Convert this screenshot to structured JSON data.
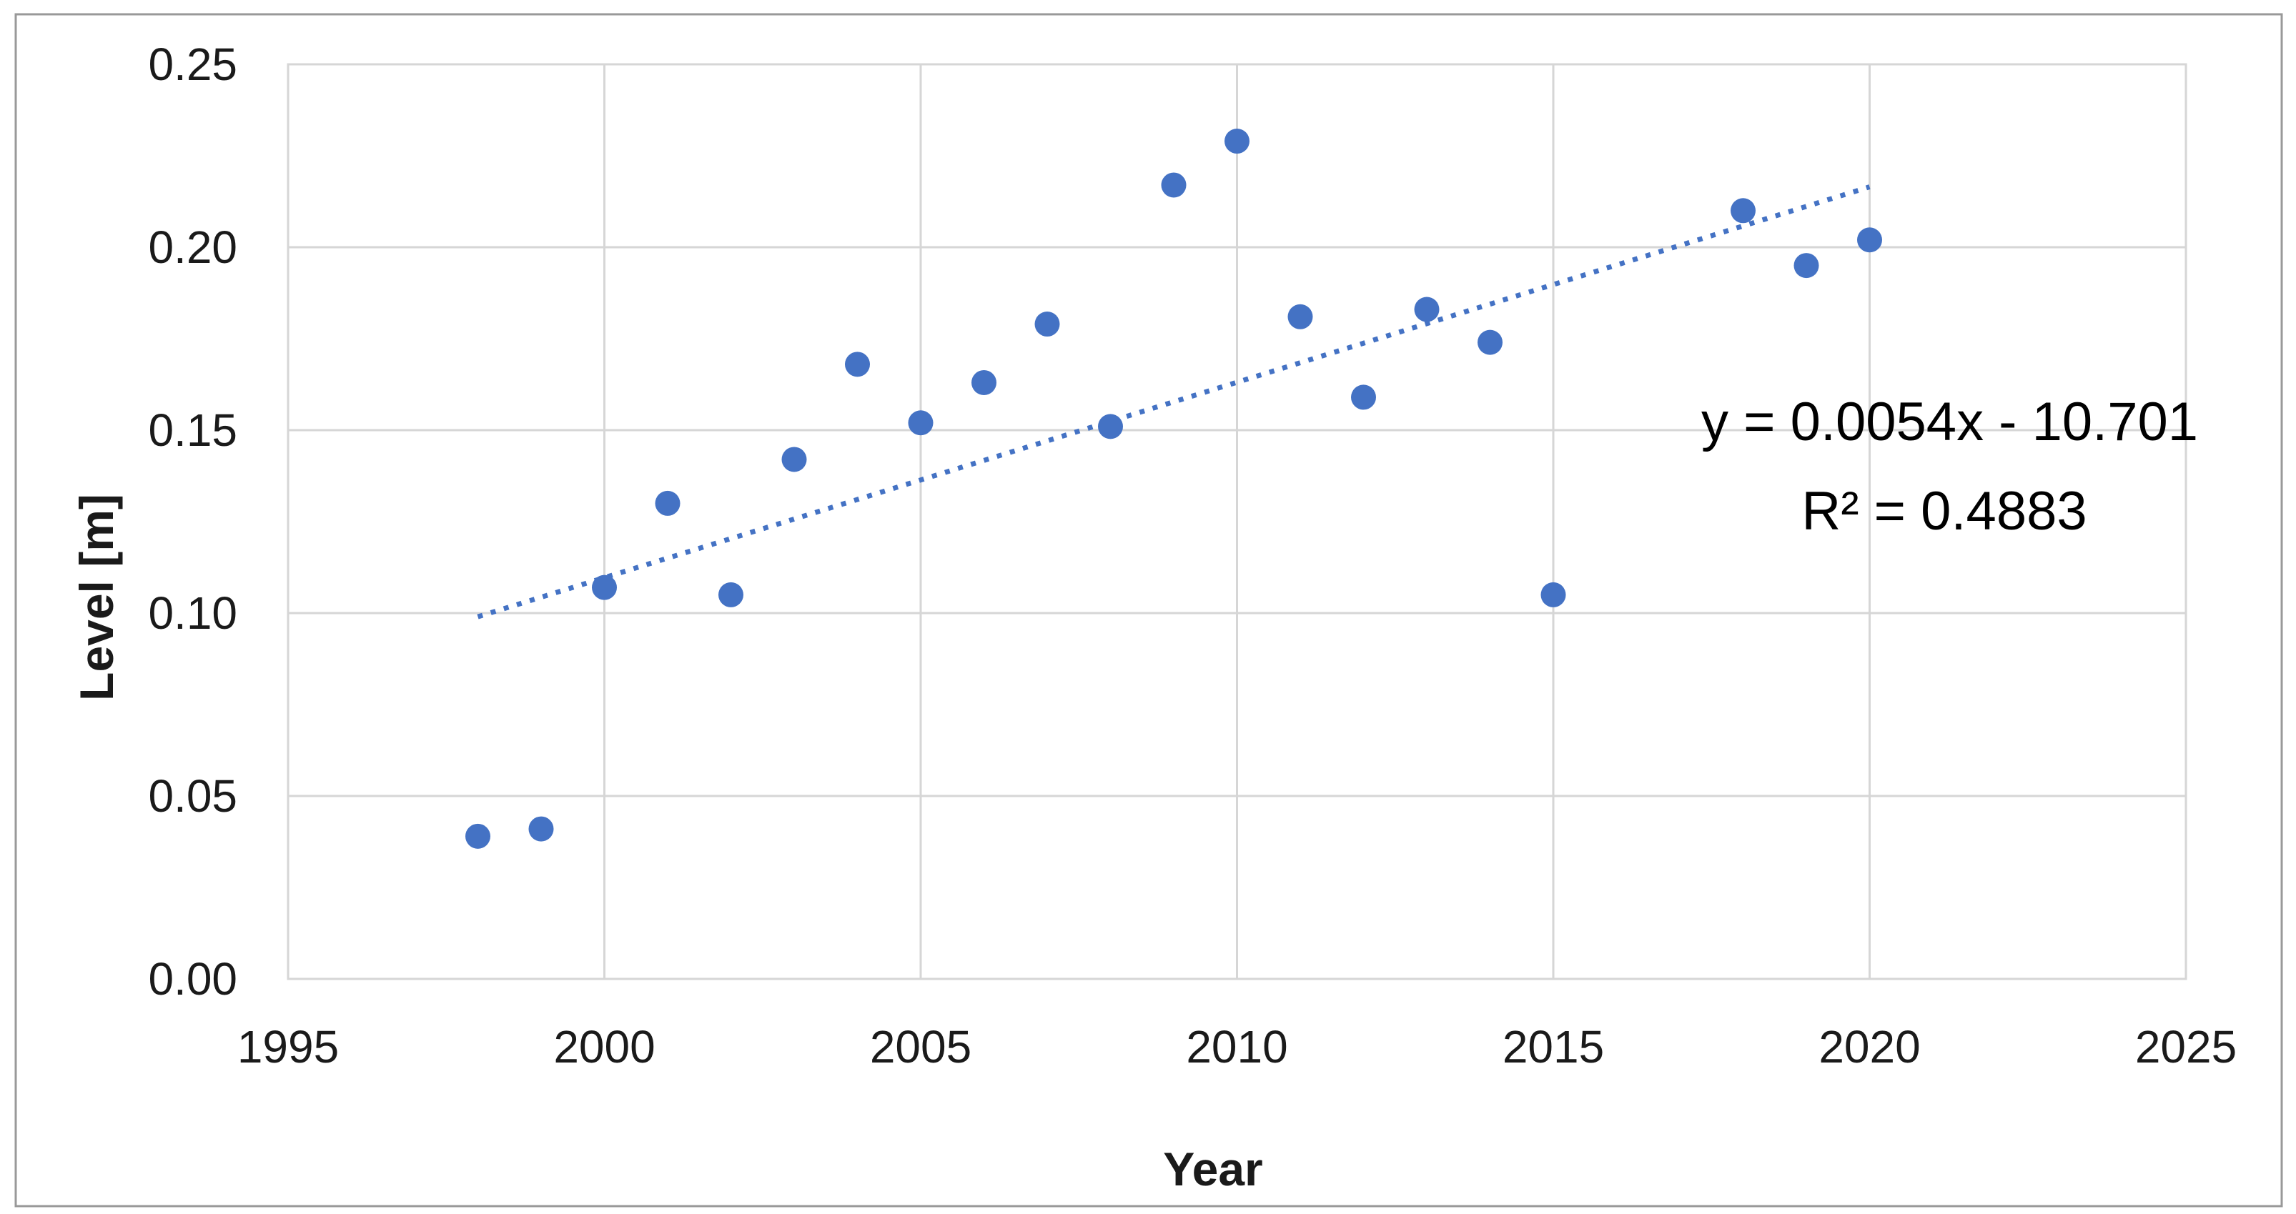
{
  "chart_data": {
    "type": "scatter",
    "title": "",
    "xlabel": "Year",
    "ylabel": "Level [m]",
    "xlim": [
      1995,
      2025
    ],
    "ylim": [
      0.0,
      0.25
    ],
    "x_ticks": [
      1995,
      2000,
      2005,
      2010,
      2015,
      2020,
      2025
    ],
    "x_tick_labels": [
      "1995",
      "2000",
      "2005",
      "2010",
      "2015",
      "2020",
      "2025"
    ],
    "y_ticks": [
      0.0,
      0.05,
      0.1,
      0.15,
      0.2,
      0.25
    ],
    "y_tick_labels": [
      "0.00",
      "0.05",
      "0.10",
      "0.15",
      "0.20",
      "0.25"
    ],
    "grid": true,
    "legend_position": "none",
    "marker_color": "#4472C4",
    "gridline_color": "#D6D6D6",
    "figure_border_color": "#999999",
    "points": [
      {
        "year": 1998,
        "level": 0.039
      },
      {
        "year": 1999,
        "level": 0.041
      },
      {
        "year": 2000,
        "level": 0.107
      },
      {
        "year": 2001,
        "level": 0.13
      },
      {
        "year": 2002,
        "level": 0.105
      },
      {
        "year": 2003,
        "level": 0.142
      },
      {
        "year": 2004,
        "level": 0.168
      },
      {
        "year": 2005,
        "level": 0.152
      },
      {
        "year": 2006,
        "level": 0.163
      },
      {
        "year": 2007,
        "level": 0.179
      },
      {
        "year": 2008,
        "level": 0.151
      },
      {
        "year": 2009,
        "level": 0.217
      },
      {
        "year": 2010,
        "level": 0.229
      },
      {
        "year": 2011,
        "level": 0.181
      },
      {
        "year": 2012,
        "level": 0.159
      },
      {
        "year": 2013,
        "level": 0.183
      },
      {
        "year": 2014,
        "level": 0.174
      },
      {
        "year": 2015,
        "level": 0.105
      },
      {
        "year": 2018,
        "level": 0.21
      },
      {
        "year": 2019,
        "level": 0.195
      },
      {
        "year": 2020,
        "level": 0.202
      }
    ],
    "trendline": {
      "equation": "y = 0.0054x - 10.701",
      "r_squared": "R² = 0.4883",
      "style": "dotted",
      "color": "#4472C4",
      "x_start": 1998,
      "y_start": 0.099,
      "x_end": 2020,
      "y_end": 0.2165
    }
  }
}
